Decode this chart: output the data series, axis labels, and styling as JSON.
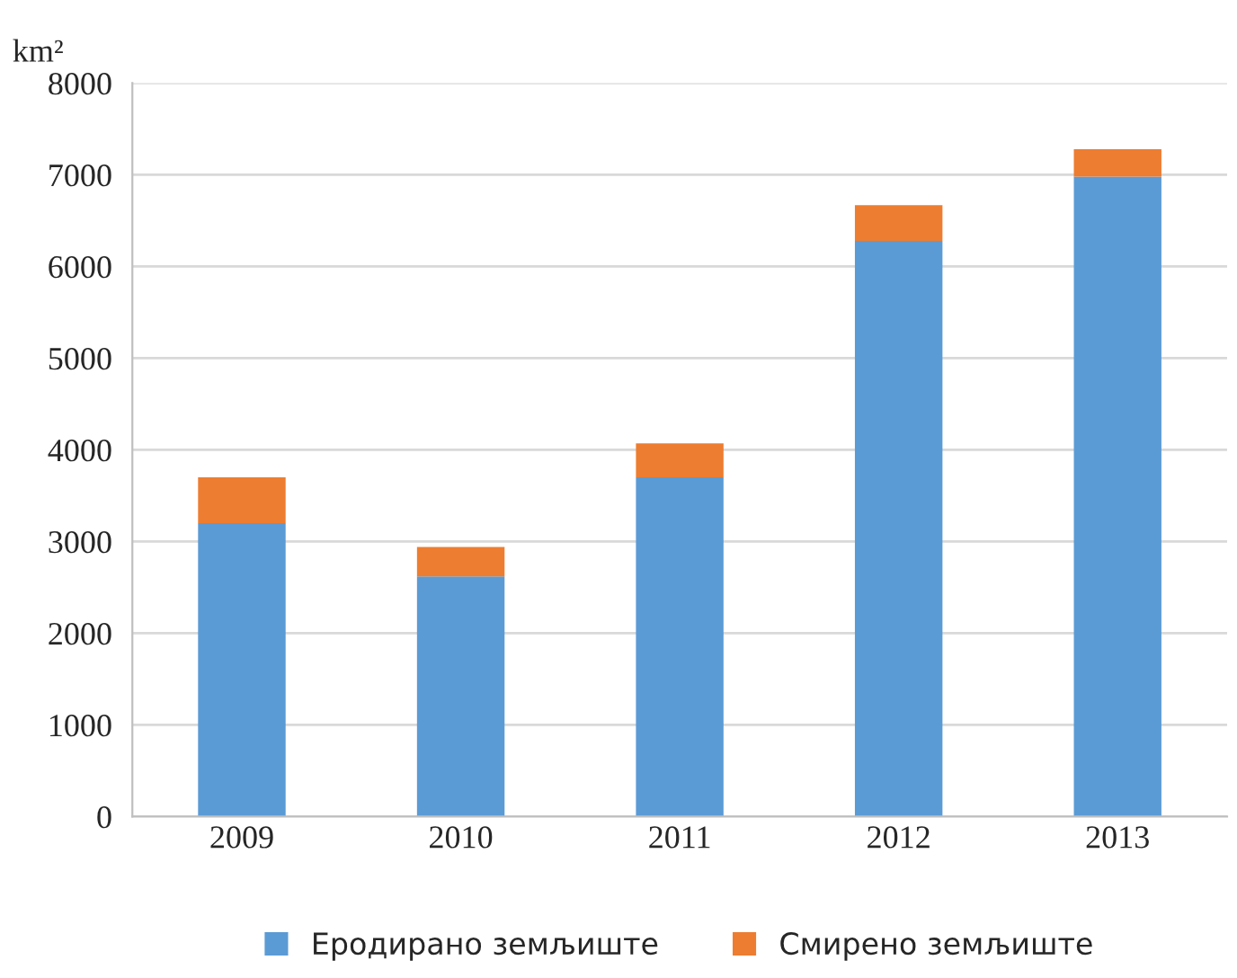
{
  "chart_data": {
    "type": "bar",
    "stacked": true,
    "ylabel": "km²",
    "categories": [
      "2009",
      "2010",
      "2011",
      "2012",
      "2013"
    ],
    "series": [
      {
        "name": "Еродирано земљиште",
        "color": "#5b9bd5",
        "values": [
          3200,
          2620,
          3700,
          6280,
          6980
        ]
      },
      {
        "name": "Смирено земљиште",
        "color": "#ed7d31",
        "values": [
          500,
          320,
          370,
          390,
          300
        ]
      }
    ],
    "ylim": [
      0,
      8000
    ],
    "yticks": [
      0,
      1000,
      2000,
      3000,
      4000,
      5000,
      6000,
      7000,
      8000
    ],
    "grid": "y",
    "legend": "bottom"
  }
}
